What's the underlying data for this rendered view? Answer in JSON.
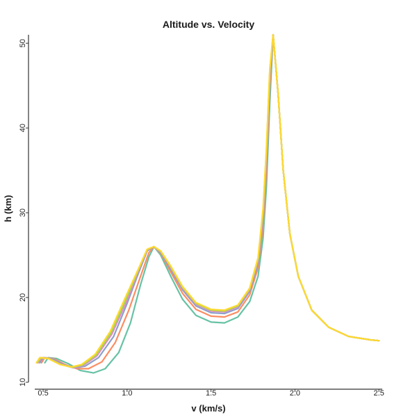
{
  "chart_data": {
    "type": "line",
    "title": "Altitude vs. Velocity",
    "xlabel": "v (km/s)",
    "ylabel": "h (km)",
    "xlim": [
      0.45,
      2.52
    ],
    "ylim": [
      10,
      51
    ],
    "x_ticks": [
      "0.5",
      "1.0",
      "1.5",
      "2.0",
      "2.5"
    ],
    "y_ticks": [
      "10",
      "20",
      "30",
      "40",
      "50"
    ],
    "grid": false,
    "legend": "none",
    "series": [
      {
        "color": "#66c2a5",
        "x": [
          0.51,
          0.53,
          0.58,
          0.65,
          0.72,
          0.8,
          0.87,
          0.95,
          1.02,
          1.08,
          1.13,
          1.16,
          1.2,
          1.26,
          1.33,
          1.41,
          1.5,
          1.58,
          1.66,
          1.73,
          1.78,
          1.81,
          1.83,
          1.85,
          1.87,
          1.9,
          1.93,
          1.97,
          2.02,
          2.1,
          2.2,
          2.32,
          2.45,
          2.5
        ],
        "y": [
          12.3,
          12.9,
          12.8,
          12.2,
          11.4,
          11.1,
          11.6,
          13.5,
          17.0,
          21.5,
          24.8,
          26.0,
          25.0,
          22.5,
          19.8,
          17.9,
          17.1,
          17.0,
          17.7,
          19.5,
          22.5,
          27.0,
          33.0,
          43.0,
          51.0,
          44.0,
          35.0,
          27.5,
          22.5,
          18.5,
          16.5,
          15.4,
          15.0,
          14.9
        ]
      },
      {
        "color": "#fc8d62",
        "x": [
          0.49,
          0.51,
          0.56,
          0.63,
          0.7,
          0.77,
          0.85,
          0.93,
          1.01,
          1.08,
          1.13,
          1.16,
          1.2,
          1.26,
          1.33,
          1.41,
          1.5,
          1.58,
          1.66,
          1.73,
          1.78,
          1.81,
          1.83,
          1.85,
          1.87,
          1.9,
          1.93,
          1.97,
          2.02,
          2.1,
          2.2,
          2.32,
          2.45,
          2.5
        ],
        "y": [
          12.3,
          12.9,
          12.8,
          12.1,
          11.6,
          11.6,
          12.4,
          14.7,
          18.5,
          22.5,
          25.3,
          26.0,
          25.2,
          23.0,
          20.5,
          18.6,
          17.8,
          17.7,
          18.3,
          20.3,
          23.5,
          28.5,
          35.0,
          45.0,
          51.0,
          44.0,
          35.0,
          27.5,
          22.5,
          18.5,
          16.5,
          15.4,
          15.0,
          14.9
        ]
      },
      {
        "color": "#8da0cb",
        "x": [
          0.48,
          0.5,
          0.55,
          0.62,
          0.69,
          0.75,
          0.83,
          0.92,
          1.0,
          1.07,
          1.12,
          1.16,
          1.2,
          1.26,
          1.33,
          1.41,
          1.5,
          1.58,
          1.66,
          1.73,
          1.78,
          1.81,
          1.83,
          1.85,
          1.87,
          1.9,
          1.93,
          1.97,
          2.02,
          2.1,
          2.2,
          2.32,
          2.45,
          2.5
        ],
        "y": [
          12.3,
          12.9,
          12.8,
          12.1,
          11.7,
          11.9,
          12.9,
          15.4,
          19.3,
          23.0,
          25.5,
          26.0,
          25.3,
          23.3,
          20.9,
          19.0,
          18.2,
          18.1,
          18.7,
          20.7,
          24.0,
          29.5,
          36.5,
          46.0,
          51.0,
          44.0,
          35.0,
          27.5,
          22.5,
          18.5,
          16.5,
          15.4,
          15.0,
          14.9
        ]
      },
      {
        "color": "#e78ac3",
        "x": [
          0.47,
          0.49,
          0.54,
          0.61,
          0.68,
          0.74,
          0.82,
          0.91,
          1.0,
          1.07,
          1.12,
          1.16,
          1.2,
          1.26,
          1.33,
          1.41,
          1.5,
          1.58,
          1.66,
          1.73,
          1.78,
          1.81,
          1.83,
          1.85,
          1.87,
          1.9,
          1.93,
          1.97,
          2.02,
          2.1,
          2.2,
          2.32,
          2.45,
          2.5
        ],
        "y": [
          12.3,
          12.9,
          12.8,
          12.1,
          11.7,
          12.0,
          13.1,
          15.7,
          19.7,
          23.3,
          25.6,
          26.0,
          25.4,
          23.5,
          21.1,
          19.2,
          18.4,
          18.3,
          18.9,
          20.9,
          24.3,
          30.0,
          37.0,
          46.5,
          51.0,
          44.0,
          35.0,
          27.5,
          22.5,
          18.5,
          16.5,
          15.4,
          15.0,
          14.9
        ]
      },
      {
        "color": "#a6d854",
        "x": [
          0.465,
          0.485,
          0.535,
          0.605,
          0.675,
          0.735,
          0.815,
          0.905,
          0.995,
          1.07,
          1.12,
          1.16,
          1.2,
          1.26,
          1.33,
          1.41,
          1.5,
          1.58,
          1.66,
          1.73,
          1.78,
          1.81,
          1.83,
          1.85,
          1.87,
          1.9,
          1.93,
          1.97,
          2.02,
          2.1,
          2.2,
          2.32,
          2.45,
          2.5
        ],
        "y": [
          12.3,
          12.9,
          12.8,
          12.1,
          11.75,
          12.05,
          13.2,
          15.85,
          19.85,
          23.4,
          25.65,
          26.0,
          25.45,
          23.6,
          21.2,
          19.3,
          18.5,
          18.4,
          19.0,
          21.0,
          24.5,
          30.2,
          37.3,
          46.8,
          51.0,
          44.0,
          35.0,
          27.5,
          22.5,
          18.5,
          16.5,
          15.4,
          15.0,
          14.9
        ]
      },
      {
        "color": "#ffd92f",
        "x": [
          0.46,
          0.48,
          0.53,
          0.6,
          0.67,
          0.73,
          0.81,
          0.9,
          0.99,
          1.07,
          1.12,
          1.16,
          1.2,
          1.26,
          1.33,
          1.41,
          1.5,
          1.58,
          1.66,
          1.73,
          1.78,
          1.81,
          1.83,
          1.85,
          1.87,
          1.9,
          1.93,
          1.97,
          2.02,
          2.1,
          2.2,
          2.32,
          2.45,
          2.5
        ],
        "y": [
          12.3,
          12.9,
          12.8,
          12.1,
          11.8,
          12.1,
          13.3,
          16.0,
          20.0,
          23.5,
          25.7,
          26.0,
          25.5,
          23.7,
          21.3,
          19.4,
          18.6,
          18.5,
          19.1,
          21.1,
          24.7,
          30.5,
          37.5,
          47.0,
          51.0,
          44.0,
          35.0,
          27.5,
          22.5,
          18.5,
          16.5,
          15.4,
          15.0,
          14.9
        ]
      }
    ]
  }
}
